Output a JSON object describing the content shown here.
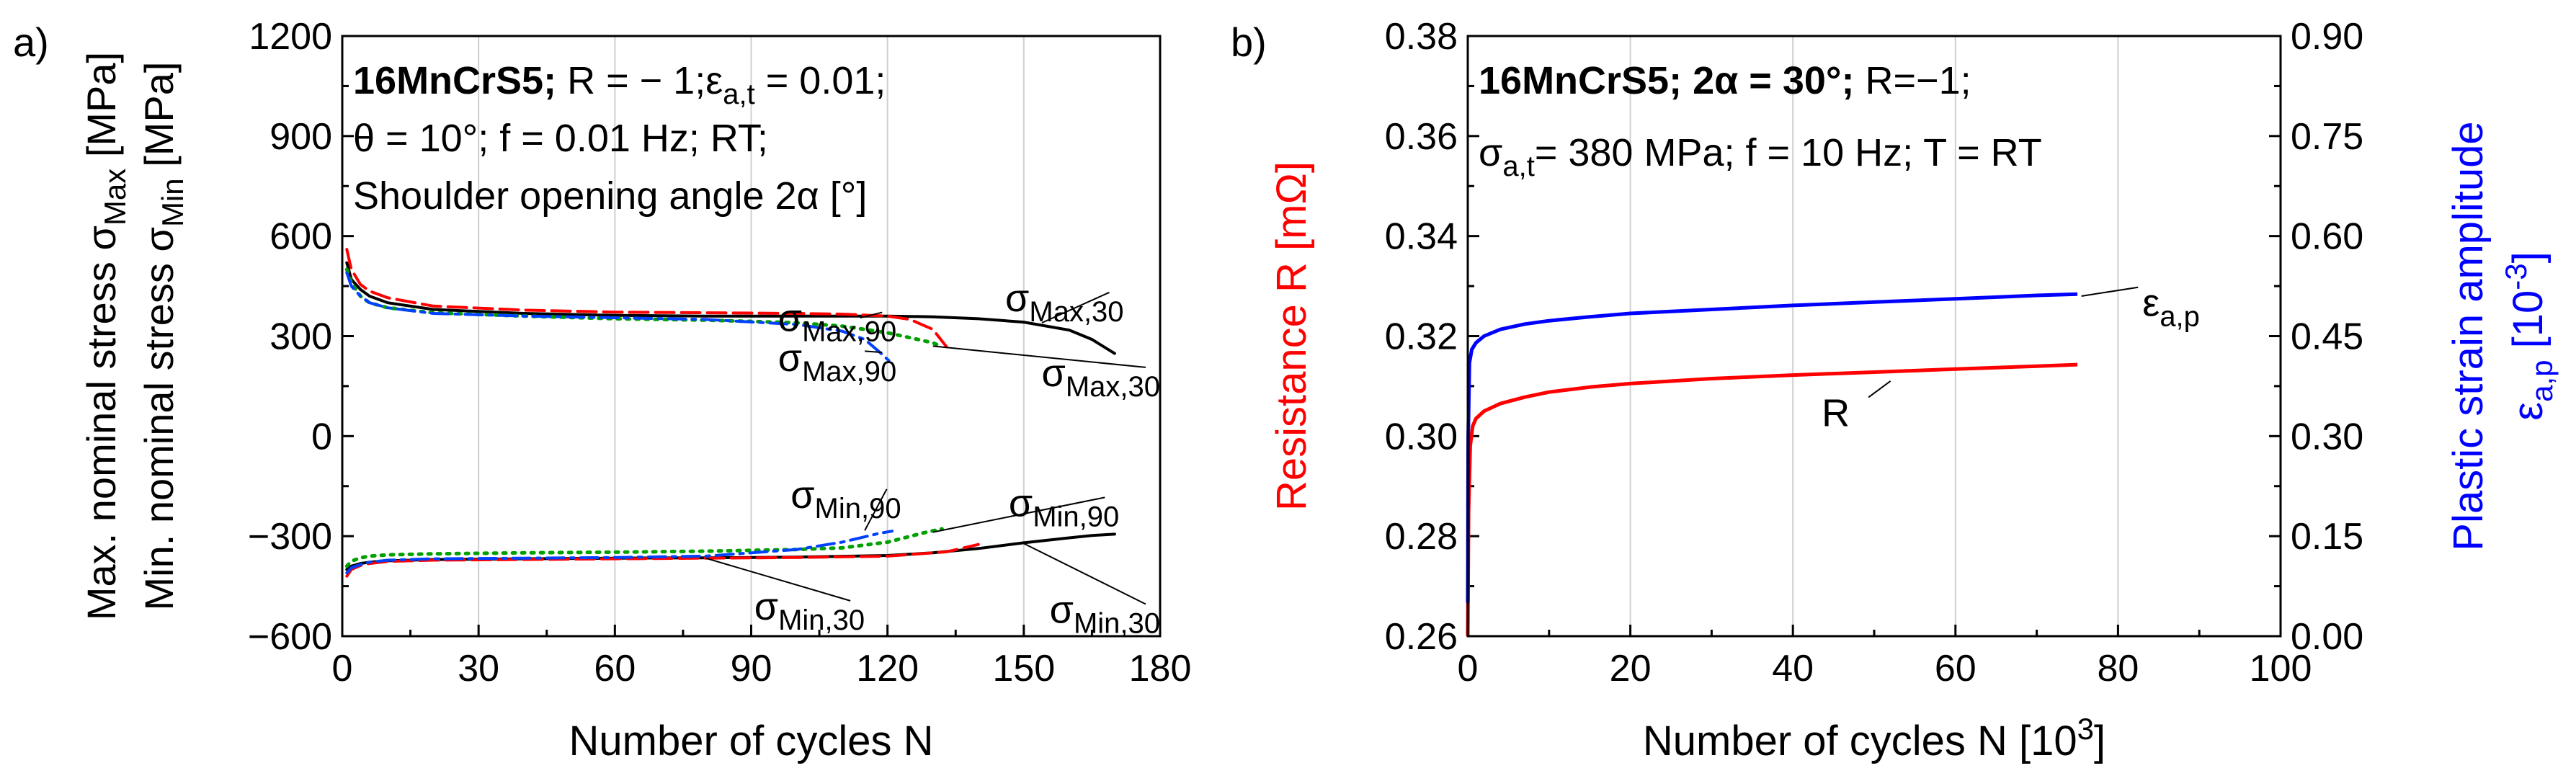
{
  "chart_data": [
    {
      "panel_label": "a)",
      "type": "line",
      "title_lines": [
        {
          "bold": "16MnCrS5;",
          "plain": " R = − 1;ε",
          "sub": "a,t",
          "tail": " = 0.01;"
        },
        {
          "plain": "θ = 10°; f = 0.01 Hz; RT;"
        },
        {
          "plain": "Shoulder opening angle 2α [°]"
        }
      ],
      "xlabel": "Number of cycles N",
      "ylabel_lines": [
        {
          "text": "Max. nominal stress σ",
          "sub": "Max",
          "tail": " [MPa]"
        },
        {
          "text": "Min. nominal stress σ",
          "sub": "Min",
          "tail": " [MPa]"
        }
      ],
      "xlim": [
        0,
        180
      ],
      "ylim": [
        -600,
        1200
      ],
      "xticks": [
        "0",
        "30",
        "60",
        "90",
        "120",
        "150",
        "180"
      ],
      "yticks": [
        "−600",
        "−300",
        "0",
        "300",
        "600",
        "900",
        "1200"
      ],
      "grid_x": [
        30,
        60,
        90,
        120,
        150
      ],
      "series": [
        {
          "name": "σMax,30 (2α = 30°)",
          "color": "#000000",
          "dash": "solid",
          "x": [
            1,
            2,
            4,
            6,
            10,
            20,
            40,
            60,
            80,
            100,
            120,
            130,
            140,
            150,
            160,
            165,
            170
          ],
          "y": [
            520,
            470,
            440,
            420,
            400,
            380,
            368,
            362,
            360,
            360,
            360,
            358,
            352,
            342,
            318,
            290,
            248
          ]
        },
        {
          "name": "σMin,30 (2α = 30°)",
          "color": "#000000",
          "dash": "solid",
          "x": [
            1,
            2,
            4,
            6,
            10,
            20,
            40,
            60,
            80,
            100,
            120,
            130,
            140,
            150,
            160,
            165,
            170
          ],
          "y": [
            -400,
            -390,
            -382,
            -378,
            -374,
            -370,
            -368,
            -366,
            -365,
            -363,
            -358,
            -350,
            -337,
            -320,
            -305,
            -298,
            -294
          ]
        },
        {
          "name": "σMax,90 (2α = 90°, red)",
          "color": "#ff0000",
          "dash": "long",
          "x": [
            1,
            2,
            4,
            6,
            10,
            20,
            40,
            60,
            80,
            100,
            110,
            120,
            125,
            130,
            133
          ],
          "y": [
            560,
            500,
            455,
            435,
            415,
            390,
            378,
            372,
            370,
            368,
            366,
            360,
            350,
            320,
            268
          ]
        },
        {
          "name": "σMin,90 (2α = 90°, red)",
          "color": "#ff0000",
          "dash": "long",
          "x": [
            1,
            2,
            4,
            6,
            10,
            20,
            40,
            60,
            80,
            100,
            120,
            133,
            140
          ],
          "y": [
            -420,
            -400,
            -388,
            -382,
            -376,
            -372,
            -370,
            -368,
            -366,
            -364,
            -360,
            -347,
            -325
          ]
        },
        {
          "name": "σMax (green, dotted)",
          "color": "#00a000",
          "dash": "dot",
          "x": [
            1,
            2,
            4,
            6,
            10,
            20,
            40,
            60,
            80,
            100,
            110,
            120,
            125,
            130,
            132
          ],
          "y": [
            500,
            460,
            420,
            400,
            385,
            370,
            360,
            352,
            348,
            340,
            330,
            310,
            295,
            280,
            268
          ]
        },
        {
          "name": "σMin (green, dotted)",
          "color": "#00a000",
          "dash": "dot",
          "x": [
            1,
            2,
            4,
            6,
            10,
            20,
            40,
            60,
            80,
            100,
            110,
            120,
            128,
            132
          ],
          "y": [
            -390,
            -375,
            -365,
            -360,
            -356,
            -353,
            -350,
            -348,
            -345,
            -340,
            -335,
            -318,
            -290,
            -278
          ]
        },
        {
          "name": "σMax,90 (2α = 90°, blue)",
          "color": "#0040ff",
          "dash": "dashdot",
          "x": [
            1,
            2,
            4,
            6,
            10,
            20,
            40,
            60,
            80,
            100,
            110,
            115,
            118,
            121
          ],
          "y": [
            490,
            450,
            420,
            400,
            385,
            368,
            360,
            355,
            350,
            335,
            315,
            290,
            255,
            218
          ]
        },
        {
          "name": "σMin,90 (2α = 90°, blue)",
          "color": "#0040ff",
          "dash": "dashdot",
          "x": [
            1,
            2,
            4,
            6,
            10,
            20,
            40,
            60,
            80,
            100,
            110,
            115,
            118,
            121
          ],
          "y": [
            -410,
            -395,
            -385,
            -378,
            -372,
            -368,
            -366,
            -364,
            -360,
            -340,
            -318,
            -302,
            -292,
            -285
          ]
        }
      ],
      "annotations": [
        {
          "sym": "σ",
          "sub": "Max,90",
          "x": 122,
          "y": 315,
          "ax": 114,
          "ay": 355
        },
        {
          "sym": "σ",
          "sub": "Max,30",
          "x": 172,
          "y": 375,
          "ax": 154,
          "ay": 340
        },
        {
          "sym": "σ",
          "sub": "Max,90",
          "x": 122,
          "y": 195,
          "ax": 115,
          "ay": 255
        },
        {
          "sym": "σ",
          "sub": "Max,30",
          "x": 180,
          "y": 150,
          "ax": 130,
          "ay": 270
        },
        {
          "sym": "σ",
          "sub": "Min,90",
          "x": 123,
          "y": -215,
          "ax": 115,
          "ay": -283
        },
        {
          "sym": "σ",
          "sub": "Min,90",
          "x": 171,
          "y": -240,
          "ax": 130,
          "ay": -288
        },
        {
          "sym": "σ",
          "sub": "Min,30",
          "x": 115,
          "y": -550,
          "ax": 80,
          "ay": -366
        },
        {
          "sym": "σ",
          "sub": "Min,30",
          "x": 180,
          "y": -560,
          "ax": 150,
          "ay": -322
        }
      ]
    },
    {
      "panel_label": "b)",
      "type": "line",
      "title_lines": [
        {
          "bold": "16MnCrS5; 2α = 30°;",
          "plain": " R=−1;"
        },
        {
          "plain": "σ",
          "sub": "a,t",
          "tail": "= 380 MPa; f = 10 Hz; T = RT"
        }
      ],
      "xlabel": "Number of cycles N [10",
      "xlabel_sup": "3",
      "xlabel_tail": "]",
      "ylabel_left": {
        "black": "Resistance R ",
        "red": "[mΩ]"
      },
      "ylabel_right": {
        "line1": "Plastic strain amplitude",
        "line2_pre": "ε",
        "line2_sub": "a,p",
        "line2_tail": " [10",
        "sup": "-3",
        "end": "]"
      },
      "xlim": [
        0,
        100
      ],
      "ylim_left": [
        0.26,
        0.38
      ],
      "ylim_right": [
        0.0,
        0.9
      ],
      "xticks": [
        "0",
        "20",
        "40",
        "60",
        "80",
        "100"
      ],
      "yticks_left": [
        "0.26",
        "0.28",
        "0.30",
        "0.32",
        "0.34",
        "0.36",
        "0.38"
      ],
      "yticks_right": [
        "0.00",
        "0.15",
        "0.30",
        "0.45",
        "0.60",
        "0.75",
        "0.90"
      ],
      "grid_x": [
        20,
        40,
        60,
        80
      ],
      "series": [
        {
          "name": "R",
          "axis": "left",
          "color": "#ff0000",
          "x": [
            0,
            0.1,
            0.3,
            0.6,
            1,
            2,
            4,
            7,
            10,
            15,
            20,
            30,
            40,
            50,
            60,
            70,
            75
          ],
          "y": [
            0.26,
            0.285,
            0.298,
            0.302,
            0.3035,
            0.305,
            0.3065,
            0.3078,
            0.3088,
            0.3098,
            0.3105,
            0.3115,
            0.3122,
            0.3128,
            0.3134,
            0.314,
            0.3143
          ]
        },
        {
          "name": "εa,p",
          "axis": "right",
          "color": "#0000ff",
          "x": [
            0,
            0.05,
            0.2,
            0.5,
            1,
            2,
            4,
            7,
            10,
            15,
            20,
            30,
            40,
            50,
            60,
            70,
            75
          ],
          "y": [
            0.05,
            0.3,
            0.41,
            0.43,
            0.44,
            0.45,
            0.46,
            0.468,
            0.473,
            0.479,
            0.484,
            0.49,
            0.496,
            0.501,
            0.506,
            0.511,
            0.513
          ]
        }
      ],
      "annotations": [
        {
          "sym": "ε",
          "sub": "a,p",
          "x": 83,
          "y": 0.48,
          "axis": "right",
          "ax": 75.5,
          "ay": 0.51
        },
        {
          "sym": "R",
          "sub": "",
          "x": 47,
          "y": 0.302,
          "axis": "left",
          "ax": 52,
          "ay": 0.311
        }
      ]
    }
  ]
}
